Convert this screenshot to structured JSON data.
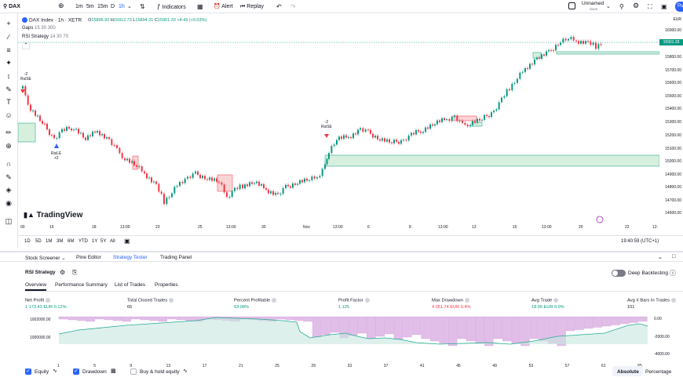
{
  "topbar": {
    "symbol_search": "DAX",
    "intervals": [
      "1m",
      "5m",
      "15m",
      "D",
      "1h"
    ],
    "indicators_label": "Indicators",
    "alert_label": "Alert",
    "replay_label": "Replay",
    "layout_name": "Unnamed",
    "layout_status": "Save",
    "publish_label": "Pu"
  },
  "legend": {
    "title": "DAX Index · 1h · XETR",
    "o_label": "O",
    "o": "15896.92",
    "h_label": "H",
    "h": "15912.73",
    "l_label": "L",
    "l": "15894.31",
    "c_label": "C",
    "c": "15901.33",
    "change": "+4.49 (+0.03%)",
    "indicator1": "Gaps",
    "indicator1_params": "15 30 300",
    "indicator2": "RSI Strategy",
    "indicator2_params": "14 30 70"
  },
  "price_axis": {
    "currency": "EUR",
    "current_price": "15901.33",
    "labels": [
      "16000.00",
      "15900.00",
      "15800.00",
      "15700.00",
      "15600.00",
      "15500.00",
      "15400.00",
      "15300.00",
      "15200.00",
      "15100.00",
      "15000.00",
      "14900.00",
      "14800.00",
      "14700.00",
      "14600.00"
    ]
  },
  "time_axis": {
    "labels": [
      "00",
      "16",
      "18",
      "13:00",
      "23",
      "25",
      "13:00",
      "30",
      "Nov",
      "13:00",
      "6",
      "8",
      "13:00",
      "13",
      "15",
      "13:00",
      "20",
      "22",
      "12:"
    ]
  },
  "signals": [
    {
      "text": "-2",
      "sub": "RsiSE"
    },
    {
      "text": "RsiLE",
      "sub": "+2"
    },
    {
      "text": "-2",
      "sub": "RsiSE"
    }
  ],
  "watermark": "TradingView",
  "range_bar": {
    "ranges": [
      "1D",
      "5D",
      "1M",
      "3M",
      "6M",
      "YTD",
      "1Y",
      "5Y",
      "All"
    ],
    "clock": "19:40:59 (UTC+1)"
  },
  "panel_tabs": [
    "Stock Screener",
    "Pine Editor",
    "Strategy Tester",
    "Trading Panel"
  ],
  "strategy": {
    "name": "RSI Strategy",
    "deep_backtesting_label": "Deep Backtesting",
    "tabs": [
      "Overview",
      "Performance Summary",
      "List of Trades",
      "Properties"
    ],
    "metrics": [
      {
        "label": "Net Profit",
        "value": "1 173.43 EUR",
        "pct": "0.12%",
        "color": "green"
      },
      {
        "label": "Total Closed Trades",
        "value": "65",
        "pct": "",
        "color": "dark"
      },
      {
        "label": "Percent Profitable",
        "value": "63.08%",
        "pct": "",
        "color": "green"
      },
      {
        "label": "Profit Factor",
        "value": "1.125",
        "pct": "",
        "color": "green"
      },
      {
        "label": "Max Drawdown",
        "value": "4 051.74 EUR",
        "pct": "0.4%",
        "color": "red"
      },
      {
        "label": "Avg Trade",
        "value": "18.05 EUR",
        "pct": "0.0%",
        "color": "green"
      },
      {
        "label": "Avg # Bars In Trades",
        "value": "101",
        "pct": "",
        "color": "dark"
      }
    ],
    "equity_left_axis": [
      "1002000.00",
      "1000000.00"
    ],
    "equity_right_axis": [
      "0.00",
      "-2000.00",
      "-4000.00"
    ],
    "trade_axis": [
      "1",
      "5",
      "9",
      "13",
      "17",
      "21",
      "25",
      "29",
      "33",
      "37",
      "41",
      "45",
      "49",
      "53",
      "57",
      "61",
      "65"
    ],
    "equity_label": "Equity",
    "drawdown_label": "Drawdown",
    "buyhold_label": "Buy & hold equity",
    "absolute_label": "Absolute",
    "percentage_label": "Percentage"
  },
  "colors": {
    "up": "#089981",
    "down": "#f23645",
    "accent": "#2962ff",
    "gap_green": "#d6f0dd",
    "gap_red": "#f9d4d6",
    "drawdown": "#ce93d8"
  }
}
